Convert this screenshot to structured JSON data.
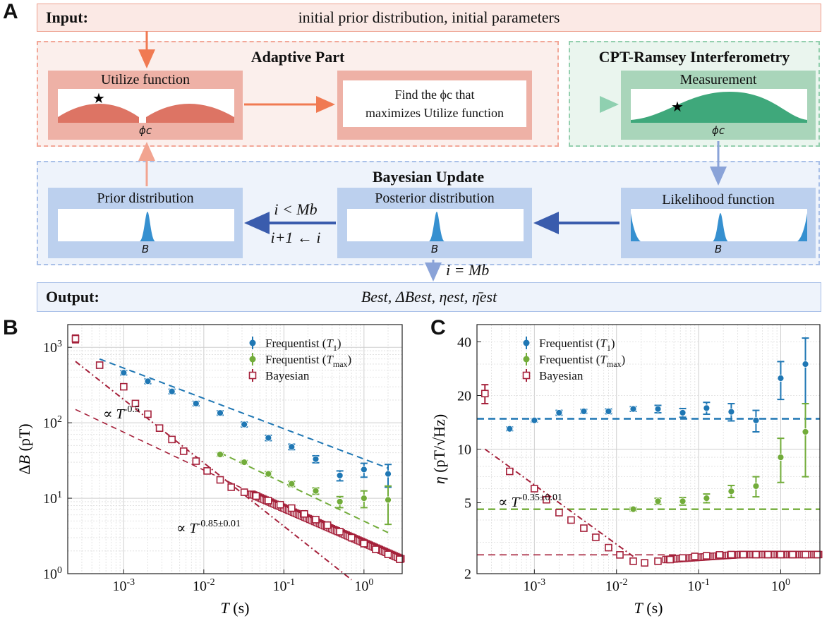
{
  "panels": {
    "a": "A",
    "b": "B",
    "c": "C"
  },
  "flow": {
    "input_label": "Input:",
    "input_text": "initial prior distribution, initial parameters",
    "adaptive_title": "Adaptive Part",
    "cpt_title": "CPT-Ramsey Interferometry",
    "bayes_title": "Bayesian Update",
    "utilize_title": "Utilize function",
    "utilize_axis": "ϕc",
    "find_line1": "Find the ϕc that",
    "find_line2": "maximizes Utilize function",
    "measurement_title": "Measurement",
    "measurement_axis": "ϕc",
    "prior_title": "Prior distribution",
    "prior_axis": "B",
    "posterior_title": "Posterior distribution",
    "posterior_axis": "B",
    "likelihood_title": "Likelihood function",
    "likelihood_axis": "B",
    "loop_condition": "i < Mb",
    "loop_update": "i+1 ← i",
    "exit_condition": "i = Mb",
    "output_label": "Output:",
    "output_text": "Best, ΔBest, ηest, η̄est",
    "colors": {
      "adaptive": "#f4a898",
      "cpt": "#94cfae",
      "bayes": "#b7cbea",
      "bayes_card": "#bcd0ee",
      "utilize_card": "#eeb1a6",
      "measure_card": "#a9d5ba",
      "accent_orange": "#f07a52",
      "accent_blue": "#3a5cad"
    }
  },
  "chart_data": [
    {
      "panel": "B",
      "type": "scatter",
      "xscale": "log",
      "yscale": "log",
      "xlim": [
        0.0002,
        3
      ],
      "ylim": [
        1,
        2000
      ],
      "xlabel": "T (s)",
      "ylabel": "ΔB (pT)",
      "xticks": [
        "10-3",
        "10-2",
        "10-1",
        "100"
      ],
      "yticks": [
        "100",
        "101",
        "102",
        "103"
      ],
      "legend": "top-right",
      "grid": true,
      "annotations": [
        "∝ T-0.5",
        "∝ T-0.85±0.01"
      ],
      "series": [
        {
          "name": "Frequentist (T1)",
          "color": "#1f77b4",
          "marker": "circle",
          "x": [
            0.0005,
            0.001,
            0.002,
            0.004,
            0.008,
            0.016,
            0.032,
            0.064,
            0.125,
            0.25,
            0.5,
            1.0,
            2.0
          ],
          "y": [
            570,
            460,
            355,
            260,
            180,
            135,
            95,
            63,
            48,
            33,
            20,
            24,
            21
          ],
          "yerr": [
            40,
            30,
            25,
            18,
            12,
            9,
            7,
            5,
            4,
            3.5,
            3,
            5,
            7
          ],
          "fit_x": [
            0.0005,
            2.0
          ],
          "fit_y": [
            700,
            25
          ]
        },
        {
          "name": "Frequentist (Tmax)",
          "color": "#72ac3a",
          "marker": "circle",
          "x": [
            0.016,
            0.032,
            0.064,
            0.125,
            0.25,
            0.5,
            1.0,
            2.0
          ],
          "y": [
            38,
            30,
            21,
            15.5,
            12.5,
            9,
            10,
            9.5
          ],
          "yerr": [
            2,
            1.5,
            1.5,
            1.2,
            1.2,
            1.5,
            2.5,
            5
          ],
          "fit_x": [
            0.016,
            2.0
          ],
          "fit_y": [
            40,
            3.5
          ]
        },
        {
          "name": "Bayesian",
          "color": "#a5203a",
          "marker": "square-open",
          "x": [
            0.00025,
            0.0005,
            0.001,
            0.0014,
            0.002,
            0.0028,
            0.004,
            0.0056,
            0.008,
            0.011,
            0.016,
            0.022,
            0.032,
            0.045,
            0.064,
            0.09,
            0.125,
            0.18,
            0.25,
            0.35,
            0.5,
            0.7,
            1.0,
            1.4,
            2.0,
            2.8
          ],
          "y": [
            1300,
            580,
            300,
            180,
            130,
            85,
            60,
            42,
            31,
            23,
            17.5,
            14,
            12,
            10.7,
            9.3,
            8.2,
            7.4,
            6.2,
            5.2,
            4.4,
            3.6,
            3.0,
            2.5,
            2.1,
            1.8,
            1.55
          ],
          "yerr": [
            150,
            40,
            20,
            12,
            8,
            5,
            3.5,
            2.5,
            2,
            1.5,
            1,
            0.8,
            0.6,
            0.5,
            0.4,
            0.3,
            0.3,
            0.2,
            0.2,
            0.15,
            0.1,
            0.1,
            0.1,
            0.1,
            0.1,
            0.05
          ],
          "fit_x": [
            0.00025,
            0.7
          ],
          "fit_y": [
            650,
            0.83
          ]
        }
      ],
      "reference": {
        "x": [
          0.00025,
          0.7
        ],
        "y": [
          150,
          2.8
        ],
        "color": "#a5203a"
      }
    },
    {
      "panel": "C",
      "type": "scatter",
      "xscale": "log",
      "yscale": "log",
      "xlim": [
        0.0002,
        3
      ],
      "ylim": [
        2,
        50
      ],
      "xlabel": "T (s)",
      "ylabel": "η (pT/√Hz)",
      "xticks": [
        "10-3",
        "10-2",
        "10-1",
        "100"
      ],
      "yticks": [
        "2",
        "5",
        "10",
        "20",
        "40"
      ],
      "legend": "top-right",
      "grid": true,
      "annotations": [
        "∝ T-0.35±0.01"
      ],
      "series": [
        {
          "name": "Frequentist (T1)",
          "color": "#1f77b4",
          "marker": "circle",
          "x": [
            0.0005,
            0.001,
            0.002,
            0.004,
            0.008,
            0.016,
            0.032,
            0.064,
            0.125,
            0.25,
            0.5,
            1.0,
            2.0
          ],
          "y": [
            13,
            14.5,
            16,
            16.3,
            16.3,
            16.8,
            16.8,
            16,
            17,
            16.2,
            14.5,
            25,
            30
          ],
          "yerr": [
            0.3,
            0.3,
            0.5,
            0.4,
            0.5,
            0.5,
            0.8,
            0.9,
            1.3,
            1.8,
            2,
            6,
            12
          ],
          "fit_y": 14.8
        },
        {
          "name": "Frequentist (Tmax)",
          "color": "#72ac3a",
          "marker": "circle",
          "x": [
            0.016,
            0.032,
            0.064,
            0.125,
            0.25,
            0.5,
            1.0,
            2.0
          ],
          "y": [
            4.6,
            5.1,
            5.1,
            5.3,
            5.8,
            6.2,
            9,
            12.5
          ],
          "yerr": [
            0.1,
            0.2,
            0.25,
            0.3,
            0.45,
            0.8,
            2.5,
            5.5
          ],
          "fit_y": 4.6
        },
        {
          "name": "Bayesian",
          "color": "#a5203a",
          "marker": "square-open",
          "x": [
            0.00025,
            0.0005,
            0.001,
            0.0014,
            0.002,
            0.0028,
            0.004,
            0.0056,
            0.008,
            0.011,
            0.016,
            0.022,
            0.032,
            0.045,
            0.064,
            0.09,
            0.125,
            0.18,
            0.25,
            0.35,
            0.5,
            0.7,
            1.0,
            1.4,
            2.0,
            2.8
          ],
          "y": [
            20.5,
            7.5,
            6.0,
            5.2,
            4.4,
            4.0,
            3.6,
            3.2,
            2.8,
            2.55,
            2.35,
            2.3,
            2.35,
            2.4,
            2.45,
            2.5,
            2.52,
            2.55,
            2.56,
            2.56,
            2.56,
            2.56,
            2.56,
            2.56,
            2.56,
            2.56
          ],
          "yerr": [
            2.5,
            0.25,
            0.2,
            0.15,
            0.12,
            0.1,
            0.08,
            0.07,
            0.06,
            0.05,
            0.05,
            0.05,
            0.05,
            0.05,
            0.05,
            0.05,
            0.05,
            0.05,
            0.05,
            0.05,
            0.05,
            0.05,
            0.05,
            0.05,
            0.05,
            0.05
          ],
          "fit_x": [
            0.00025,
            0.016
          ],
          "fit_y": [
            10,
            2.5
          ]
        }
      ],
      "reference": {
        "y": 2.55,
        "color": "#a5203a"
      }
    }
  ]
}
